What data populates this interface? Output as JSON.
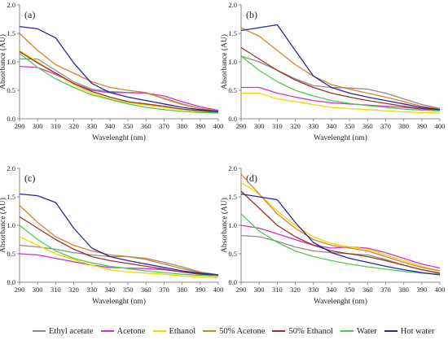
{
  "axes": {
    "xlabel": "Wavelenght (nm)",
    "ylabel": "Absorbance (AU)",
    "x_ticks": [
      "290",
      "300",
      "310",
      "320",
      "330",
      "340",
      "350",
      "360",
      "370",
      "380",
      "390",
      "400"
    ],
    "y_ticks": [
      "0.0",
      "0.5",
      "1.0",
      "1.5",
      "2.0"
    ]
  },
  "legend": [
    {
      "name": "Ethyl acetate",
      "color": "#8c8c8c"
    },
    {
      "name": "Acetone",
      "color": "#cc33cc"
    },
    {
      "name": "Ethanol",
      "color": "#f2d600"
    },
    {
      "name": "50% Acetone",
      "color": "#d9822b"
    },
    {
      "name": "50% Ethanol",
      "color": "#993326"
    },
    {
      "name": "Water",
      "color": "#4ccc4c"
    },
    {
      "name": "Hot water",
      "color": "#2626a6"
    }
  ],
  "chart_data": [
    {
      "type": "line",
      "label": "(a)",
      "xlim": [
        290,
        400
      ],
      "ylim": [
        0,
        2.0
      ],
      "grid": false,
      "x": [
        290,
        300,
        310,
        320,
        330,
        340,
        350,
        360,
        370,
        380,
        390,
        400
      ],
      "series": [
        {
          "name": "Ethyl acetate",
          "values": [
            1.05,
            1.05,
            0.85,
            0.65,
            0.52,
            0.48,
            0.46,
            0.45,
            0.36,
            0.26,
            0.18,
            0.13
          ]
        },
        {
          "name": "Acetone",
          "values": [
            0.92,
            0.9,
            0.78,
            0.62,
            0.5,
            0.46,
            0.46,
            0.45,
            0.4,
            0.3,
            0.21,
            0.15
          ]
        },
        {
          "name": "Ethanol",
          "values": [
            1.2,
            1.0,
            0.8,
            0.6,
            0.45,
            0.35,
            0.28,
            0.24,
            0.2,
            0.16,
            0.13,
            0.11
          ]
        },
        {
          "name": "50% Acetone",
          "values": [
            1.5,
            1.2,
            0.95,
            0.8,
            0.65,
            0.55,
            0.5,
            0.46,
            0.35,
            0.25,
            0.18,
            0.14
          ]
        },
        {
          "name": "50% Ethanol",
          "values": [
            1.18,
            0.98,
            0.8,
            0.62,
            0.48,
            0.38,
            0.3,
            0.26,
            0.22,
            0.17,
            0.14,
            0.11
          ]
        },
        {
          "name": "Water",
          "values": [
            1.15,
            0.9,
            0.7,
            0.55,
            0.42,
            0.34,
            0.26,
            0.2,
            0.16,
            0.13,
            0.11,
            0.1
          ]
        },
        {
          "name": "Hot water",
          "values": [
            1.62,
            1.58,
            1.42,
            0.98,
            0.62,
            0.46,
            0.38,
            0.32,
            0.26,
            0.2,
            0.16,
            0.13
          ]
        }
      ]
    },
    {
      "type": "line",
      "label": "(b)",
      "xlim": [
        290,
        400
      ],
      "ylim": [
        0,
        2.0
      ],
      "grid": false,
      "x": [
        290,
        300,
        310,
        320,
        330,
        340,
        350,
        360,
        370,
        380,
        390,
        400
      ],
      "series": [
        {
          "name": "Ethyl acetate",
          "values": [
            1.1,
            1.0,
            0.85,
            0.7,
            0.58,
            0.55,
            0.54,
            0.52,
            0.45,
            0.35,
            0.25,
            0.18
          ]
        },
        {
          "name": "Acetone",
          "values": [
            0.55,
            0.55,
            0.45,
            0.38,
            0.32,
            0.28,
            0.26,
            0.24,
            0.22,
            0.2,
            0.17,
            0.15
          ]
        },
        {
          "name": "Ethanol",
          "values": [
            0.45,
            0.45,
            0.35,
            0.3,
            0.25,
            0.2,
            0.18,
            0.16,
            0.14,
            0.12,
            0.11,
            0.1
          ]
        },
        {
          "name": "50% Acetone",
          "values": [
            1.6,
            1.45,
            1.2,
            0.95,
            0.75,
            0.6,
            0.52,
            0.45,
            0.38,
            0.3,
            0.22,
            0.17
          ]
        },
        {
          "name": "50% Ethanol",
          "values": [
            1.25,
            1.05,
            0.85,
            0.68,
            0.55,
            0.45,
            0.38,
            0.32,
            0.27,
            0.22,
            0.18,
            0.15
          ]
        },
        {
          "name": "Water",
          "values": [
            1.1,
            0.85,
            0.65,
            0.5,
            0.4,
            0.32,
            0.27,
            0.23,
            0.2,
            0.17,
            0.15,
            0.14
          ]
        },
        {
          "name": "Hot water",
          "values": [
            1.55,
            1.6,
            1.65,
            1.2,
            0.75,
            0.55,
            0.45,
            0.38,
            0.32,
            0.26,
            0.2,
            0.16
          ]
        }
      ]
    },
    {
      "type": "line",
      "label": "(c)",
      "xlim": [
        290,
        400
      ],
      "ylim": [
        0,
        2.0
      ],
      "grid": false,
      "x": [
        290,
        300,
        310,
        320,
        330,
        340,
        350,
        360,
        370,
        380,
        390,
        400
      ],
      "series": [
        {
          "name": "Ethyl acetate",
          "values": [
            0.65,
            0.62,
            0.58,
            0.52,
            0.48,
            0.45,
            0.45,
            0.42,
            0.35,
            0.27,
            0.18,
            0.13
          ]
        },
        {
          "name": "Acetone",
          "values": [
            0.5,
            0.48,
            0.42,
            0.36,
            0.3,
            0.26,
            0.25,
            0.24,
            0.22,
            0.18,
            0.14,
            0.12
          ]
        },
        {
          "name": "Ethanol",
          "values": [
            0.8,
            0.65,
            0.5,
            0.4,
            0.3,
            0.22,
            0.18,
            0.16,
            0.14,
            0.11,
            0.09,
            0.08
          ]
        },
        {
          "name": "50% Acetone",
          "values": [
            1.35,
            1.05,
            0.8,
            0.65,
            0.55,
            0.48,
            0.45,
            0.4,
            0.32,
            0.24,
            0.17,
            0.12
          ]
        },
        {
          "name": "50% Ethanol",
          "values": [
            1.15,
            0.95,
            0.75,
            0.58,
            0.45,
            0.38,
            0.33,
            0.28,
            0.23,
            0.18,
            0.14,
            0.11
          ]
        },
        {
          "name": "Water",
          "values": [
            1.0,
            0.75,
            0.55,
            0.42,
            0.34,
            0.28,
            0.24,
            0.2,
            0.17,
            0.14,
            0.12,
            0.11
          ]
        },
        {
          "name": "Hot water",
          "values": [
            1.55,
            1.52,
            1.4,
            0.95,
            0.6,
            0.45,
            0.38,
            0.32,
            0.26,
            0.2,
            0.16,
            0.13
          ]
        }
      ]
    },
    {
      "type": "line",
      "label": "(d)",
      "xlim": [
        290,
        400
      ],
      "ylim": [
        0,
        2.0
      ],
      "grid": false,
      "x": [
        290,
        300,
        310,
        320,
        330,
        340,
        350,
        360,
        370,
        380,
        390,
        400
      ],
      "series": [
        {
          "name": "Ethyl acetate",
          "values": [
            0.82,
            0.8,
            0.72,
            0.62,
            0.55,
            0.52,
            0.5,
            0.48,
            0.4,
            0.3,
            0.22,
            0.16
          ]
        },
        {
          "name": "Acetone",
          "values": [
            1.0,
            0.95,
            0.85,
            0.75,
            0.65,
            0.6,
            0.62,
            0.6,
            0.52,
            0.42,
            0.32,
            0.25
          ]
        },
        {
          "name": "Ethanol",
          "values": [
            1.75,
            1.55,
            1.25,
            1.0,
            0.8,
            0.68,
            0.62,
            0.58,
            0.48,
            0.38,
            0.28,
            0.2
          ]
        },
        {
          "name": "50% Acetone",
          "values": [
            1.9,
            1.55,
            1.2,
            0.95,
            0.75,
            0.65,
            0.6,
            0.55,
            0.45,
            0.35,
            0.26,
            0.2
          ]
        },
        {
          "name": "50% Ethanol",
          "values": [
            1.6,
            1.3,
            1.0,
            0.8,
            0.65,
            0.55,
            0.5,
            0.45,
            0.38,
            0.3,
            0.22,
            0.16
          ]
        },
        {
          "name": "Water",
          "values": [
            1.2,
            0.9,
            0.7,
            0.55,
            0.45,
            0.38,
            0.32,
            0.27,
            0.23,
            0.19,
            0.16,
            0.14
          ]
        },
        {
          "name": "Hot water",
          "values": [
            1.55,
            1.5,
            1.45,
            1.05,
            0.7,
            0.52,
            0.42,
            0.35,
            0.28,
            0.22,
            0.17,
            0.13
          ]
        }
      ]
    }
  ]
}
